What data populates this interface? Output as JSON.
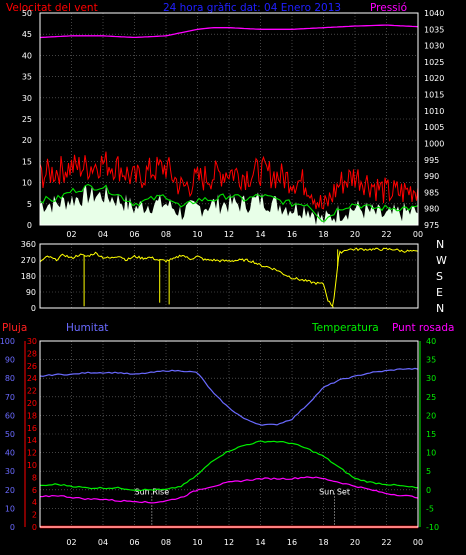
{
  "colors": {
    "background": "#000000",
    "frame": "#ffffff",
    "grid": "#6e6e6e",
    "wind_speed": "#ff0000",
    "wind_avg": "#00e000",
    "wind_gust_fill": "#e8ffe8",
    "pressure": "#ff00ff",
    "direction": "#ffff00",
    "rain": "#ff0000",
    "humidity": "#6a6aff",
    "temperature": "#00ee00",
    "dew_point": "#ff00ff",
    "sun_marker": "#ffffff",
    "tick_labels": "#ffffff"
  },
  "chart_data": [
    {
      "type": "line",
      "title": "24 hora gràfic dat: 04 Enero 2013",
      "left_axis_label": "Velocitat del vent",
      "right_axis_label": "Pressió",
      "left_ticks": [
        "0",
        "5",
        "10",
        "15",
        "20",
        "25",
        "30",
        "35",
        "40",
        "45",
        "50"
      ],
      "right_ticks": [
        "975",
        "980",
        "985",
        "990",
        "995",
        "1000",
        "1005",
        "1010",
        "1015",
        "1020",
        "1025",
        "1030",
        "1035",
        "1040"
      ],
      "x_ticks": [
        "02",
        "04",
        "06",
        "08",
        "10",
        "12",
        "14",
        "16",
        "18",
        "20",
        "22",
        "00"
      ],
      "ylim_left": [
        0,
        50
      ],
      "ylim_right": [
        975,
        1040
      ],
      "x_range_hours": [
        0,
        24
      ],
      "grid": true,
      "series": [
        {
          "role": "wind_speed",
          "x": [
            0,
            1,
            2,
            3,
            4,
            5,
            6,
            7,
            8,
            9,
            10,
            11,
            12,
            13,
            14,
            15,
            16,
            17,
            18,
            19,
            20,
            21,
            22,
            23,
            24
          ],
          "y": [
            11,
            12,
            13,
            13,
            14,
            13,
            10,
            12,
            13,
            8,
            10,
            11,
            12,
            11,
            12,
            11,
            10,
            9,
            3,
            9,
            11,
            9,
            7,
            7,
            8
          ]
        },
        {
          "role": "wind_average",
          "x": [
            0,
            1,
            2,
            3,
            4,
            5,
            6,
            7,
            8,
            9,
            10,
            11,
            12,
            13,
            14,
            15,
            16,
            17,
            18,
            19,
            20,
            21,
            22,
            23,
            24
          ],
          "y": [
            6,
            6,
            8,
            9,
            9,
            7,
            5,
            6,
            7,
            4,
            6,
            6,
            7,
            6,
            7,
            6,
            5,
            5,
            1,
            4,
            5,
            4,
            4,
            4,
            4
          ]
        },
        {
          "role": "wind_gust_band",
          "x": [
            0,
            1,
            2,
            3,
            4,
            5,
            6,
            7,
            8,
            9,
            10,
            11,
            12,
            13,
            14,
            15,
            16,
            17,
            18,
            19,
            20,
            21,
            22,
            23,
            24
          ],
          "y": [
            5,
            5,
            6,
            7,
            7,
            6,
            4,
            5,
            5,
            3,
            4,
            5,
            5,
            5,
            6,
            5,
            4,
            4,
            1,
            3,
            4,
            3,
            2,
            3,
            3
          ]
        },
        {
          "role": "pressure",
          "x": [
            0,
            2,
            4,
            6,
            8,
            9,
            10,
            11,
            12,
            14,
            16,
            18,
            20,
            22,
            24
          ],
          "y": [
            1032.5,
            1033,
            1033,
            1032.5,
            1033,
            1034,
            1035,
            1035.5,
            1035.5,
            1035,
            1035,
            1035.5,
            1036,
            1036.3,
            1035.8
          ]
        }
      ]
    },
    {
      "type": "line",
      "left_ticks": [
        "0",
        "90",
        "180",
        "270",
        "360"
      ],
      "right_ticks": [
        "N",
        "W",
        "S",
        "E",
        "N"
      ],
      "x_ticks": [],
      "ylim": [
        0,
        360
      ],
      "x_range_hours": [
        0,
        24
      ],
      "grid": true,
      "series": [
        {
          "role": "wind_direction",
          "x": [
            0,
            0.5,
            1,
            1.5,
            2,
            2.5,
            3,
            3.5,
            4,
            4.5,
            5,
            5.5,
            6,
            6.5,
            7,
            7.5,
            8,
            8.5,
            9,
            9.5,
            10,
            10.5,
            11,
            11.5,
            12,
            12.5,
            13,
            13.5,
            14,
            14.5,
            15,
            15.5,
            16,
            16.5,
            17,
            17.5,
            18,
            18.3,
            18.6,
            19,
            19.5,
            20,
            20.5,
            21,
            21.5,
            22,
            22.5,
            23,
            23.5,
            24
          ],
          "y": [
            260,
            290,
            270,
            300,
            280,
            300,
            290,
            310,
            285,
            280,
            295,
            270,
            290,
            280,
            285,
            270,
            265,
            275,
            300,
            275,
            290,
            270,
            270,
            265,
            265,
            268,
            270,
            262,
            240,
            230,
            215,
            190,
            170,
            160,
            150,
            140,
            135,
            40,
            10,
            310,
            330,
            330,
            330,
            330,
            330,
            330,
            330,
            320,
            320,
            315
          ]
        }
      ]
    },
    {
      "type": "line",
      "left_axis_label": "Pluja",
      "left_axis2_label": "Humitat",
      "right_axis_label": "Temperatura",
      "right_axis2_label": "Punt rosada",
      "rain_ticks": [
        "0",
        "2",
        "4",
        "6",
        "8",
        "10",
        "12",
        "14",
        "16",
        "18",
        "20",
        "22",
        "24",
        "26",
        "28",
        "30"
      ],
      "humidity_ticks": [
        "0",
        "10",
        "20",
        "30",
        "40",
        "50",
        "60",
        "70",
        "80",
        "90",
        "100"
      ],
      "temp_ticks": [
        "-10",
        "-5",
        "0",
        "5",
        "10",
        "15",
        "20",
        "25",
        "30",
        "35",
        "40"
      ],
      "x_ticks": [
        "02",
        "04",
        "06",
        "08",
        "10",
        "12",
        "14",
        "16",
        "18",
        "20",
        "22",
        "00"
      ],
      "ylim_rain": [
        0,
        30
      ],
      "ylim_humidity": [
        0,
        100
      ],
      "ylim_temp": [
        -10,
        40
      ],
      "x_range_hours": [
        0,
        24
      ],
      "grid": true,
      "annotations": [
        {
          "label": "Sun Rise",
          "x_hour": 7.1
        },
        {
          "label": "Sun Set",
          "x_hour": 18.7
        }
      ],
      "series": [
        {
          "role": "rain",
          "x": [
            0,
            24
          ],
          "y": [
            0,
            0
          ]
        },
        {
          "role": "humidity",
          "x": [
            0,
            1,
            2,
            3,
            4,
            5,
            6,
            7,
            8,
            9,
            10,
            11,
            12,
            13,
            14,
            15,
            16,
            17,
            18,
            19,
            20,
            21,
            22,
            23,
            24
          ],
          "y": [
            81,
            82,
            82,
            83,
            83,
            83,
            82,
            83,
            84,
            84,
            83,
            72,
            64,
            58,
            55,
            55,
            58,
            66,
            75,
            79,
            81,
            83,
            84,
            85,
            85
          ]
        },
        {
          "role": "temperature",
          "x": [
            0,
            1,
            2,
            3,
            4,
            5,
            6,
            7,
            8,
            9,
            10,
            11,
            12,
            13,
            14,
            15,
            16,
            17,
            18,
            19,
            20,
            21,
            22,
            23,
            24
          ],
          "y": [
            1,
            1.5,
            1,
            0.5,
            0.5,
            0.5,
            0,
            0,
            0,
            1,
            4,
            8,
            10.5,
            12,
            13,
            13,
            12.5,
            11,
            9,
            6,
            3,
            2,
            1.5,
            1,
            0.5
          ]
        },
        {
          "role": "dew_point",
          "x": [
            0,
            1,
            2,
            3,
            4,
            5,
            6,
            7,
            8,
            9,
            10,
            11,
            12,
            13,
            14,
            15,
            16,
            17,
            18,
            19,
            20,
            21,
            22,
            23,
            24
          ],
          "y": [
            -2,
            -1.5,
            -2,
            -2.5,
            -2.5,
            -3,
            -3,
            -3.5,
            -3,
            -2,
            0,
            1,
            2,
            2.5,
            3,
            3,
            3,
            3.5,
            3,
            2,
            1,
            0,
            -1,
            -1.5,
            -2
          ]
        }
      ]
    }
  ]
}
